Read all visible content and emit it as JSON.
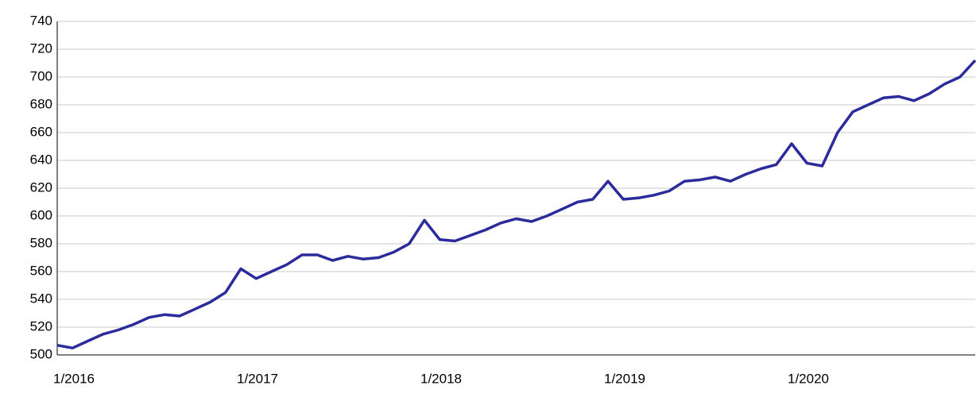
{
  "chart_data": {
    "type": "line",
    "categories": [
      "1/2016",
      null,
      null,
      null,
      null,
      null,
      null,
      null,
      null,
      null,
      null,
      null,
      "1/2017",
      null,
      null,
      null,
      null,
      null,
      null,
      null,
      null,
      null,
      null,
      null,
      "1/2018",
      null,
      null,
      null,
      null,
      null,
      null,
      null,
      null,
      null,
      null,
      null,
      "1/2019",
      null,
      null,
      null,
      null,
      null,
      null,
      null,
      null,
      null,
      null,
      null,
      "1/2020",
      null,
      null,
      null,
      null,
      null,
      null,
      null,
      null,
      null,
      null,
      null,
      null
    ],
    "series": [
      {
        "color": "#2b2b9b",
        "values": [
          507,
          505,
          510,
          515,
          518,
          522,
          527,
          529,
          528,
          533,
          538,
          545,
          562,
          555,
          560,
          565,
          572,
          572,
          568,
          571,
          569,
          570,
          574,
          580,
          597,
          583,
          582,
          586,
          590,
          595,
          598,
          596,
          600,
          605,
          610,
          612,
          625,
          612,
          613,
          615,
          618,
          625,
          626,
          628,
          625,
          630,
          634,
          637,
          652,
          638,
          636,
          660,
          675,
          680,
          685,
          686,
          683,
          688,
          695,
          700,
          712
        ]
      }
    ],
    "ylim": [
      500,
      740
    ],
    "yticks": [
      500,
      520,
      540,
      560,
      580,
      600,
      620,
      640,
      660,
      680,
      700,
      720,
      740
    ],
    "grid": true
  }
}
